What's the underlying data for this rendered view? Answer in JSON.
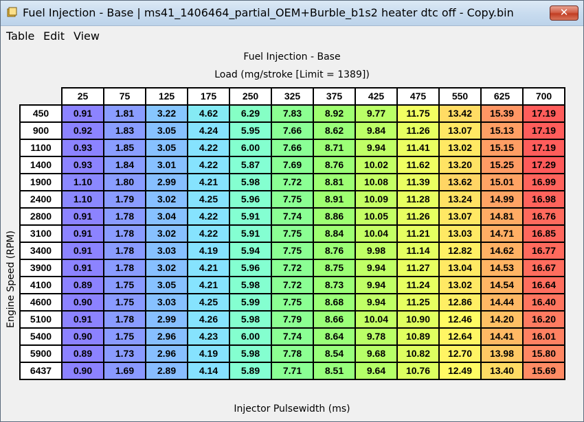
{
  "window": {
    "title": "Fuel Injection - Base | ms41_1406464_partial_OEM+Burble_b1s2 heater dtc off - Copy.bin",
    "close_label": "✕"
  },
  "menu": [
    "Table",
    "Edit",
    "View"
  ],
  "table": {
    "title": "Fuel Injection - Base",
    "x_axis_label": "Load (mg/stroke [Limit = 1389])",
    "y_axis_label": "Engine Speed (RPM)",
    "value_label": "Injector Pulsewidth (ms)",
    "columns": [
      "25",
      "75",
      "125",
      "175",
      "250",
      "325",
      "375",
      "425",
      "475",
      "550",
      "625",
      "700"
    ],
    "rows": [
      {
        "rpm": "450",
        "values": [
          "0.91",
          "1.81",
          "3.22",
          "4.62",
          "6.29",
          "7.83",
          "8.92",
          "9.77",
          "11.75",
          "13.42",
          "15.39",
          "17.19"
        ]
      },
      {
        "rpm": "900",
        "values": [
          "0.92",
          "1.83",
          "3.05",
          "4.24",
          "5.95",
          "7.66",
          "8.62",
          "9.84",
          "11.26",
          "13.07",
          "15.13",
          "17.19"
        ]
      },
      {
        "rpm": "1100",
        "values": [
          "0.93",
          "1.85",
          "3.05",
          "4.22",
          "6.00",
          "7.66",
          "8.71",
          "9.94",
          "11.41",
          "13.02",
          "15.15",
          "17.19"
        ]
      },
      {
        "rpm": "1400",
        "values": [
          "0.93",
          "1.84",
          "3.01",
          "4.22",
          "5.87",
          "7.69",
          "8.76",
          "10.02",
          "11.62",
          "13.20",
          "15.25",
          "17.29"
        ]
      },
      {
        "rpm": "1900",
        "values": [
          "1.10",
          "1.80",
          "2.99",
          "4.21",
          "5.98",
          "7.72",
          "8.81",
          "10.08",
          "11.39",
          "13.62",
          "15.01",
          "16.99"
        ]
      },
      {
        "rpm": "2400",
        "values": [
          "1.10",
          "1.79",
          "3.02",
          "4.25",
          "5.96",
          "7.75",
          "8.91",
          "10.09",
          "11.28",
          "13.24",
          "14.99",
          "16.98"
        ]
      },
      {
        "rpm": "2800",
        "values": [
          "0.91",
          "1.78",
          "3.04",
          "4.22",
          "5.91",
          "7.74",
          "8.86",
          "10.05",
          "11.26",
          "13.07",
          "14.81",
          "16.76"
        ]
      },
      {
        "rpm": "3100",
        "values": [
          "0.91",
          "1.78",
          "3.02",
          "4.22",
          "5.91",
          "7.75",
          "8.84",
          "10.04",
          "11.21",
          "13.03",
          "14.71",
          "16.85"
        ]
      },
      {
        "rpm": "3400",
        "values": [
          "0.91",
          "1.78",
          "3.03",
          "4.19",
          "5.94",
          "7.75",
          "8.76",
          "9.98",
          "11.14",
          "12.82",
          "14.62",
          "16.77"
        ]
      },
      {
        "rpm": "3900",
        "values": [
          "0.91",
          "1.78",
          "3.02",
          "4.21",
          "5.96",
          "7.72",
          "8.75",
          "9.94",
          "11.27",
          "13.04",
          "14.53",
          "16.67"
        ]
      },
      {
        "rpm": "4100",
        "values": [
          "0.89",
          "1.75",
          "3.05",
          "4.21",
          "5.98",
          "7.72",
          "8.73",
          "9.94",
          "11.24",
          "13.02",
          "14.54",
          "16.64"
        ]
      },
      {
        "rpm": "4600",
        "values": [
          "0.90",
          "1.75",
          "3.03",
          "4.25",
          "5.99",
          "7.75",
          "8.68",
          "9.94",
          "11.25",
          "12.86",
          "14.44",
          "16.40"
        ]
      },
      {
        "rpm": "5100",
        "values": [
          "0.91",
          "1.78",
          "2.99",
          "4.26",
          "5.98",
          "7.79",
          "8.66",
          "10.04",
          "10.90",
          "12.46",
          "14.20",
          "16.20"
        ]
      },
      {
        "rpm": "5400",
        "values": [
          "0.90",
          "1.75",
          "2.96",
          "4.23",
          "6.00",
          "7.74",
          "8.64",
          "9.78",
          "10.89",
          "12.64",
          "14.41",
          "16.01"
        ]
      },
      {
        "rpm": "5900",
        "values": [
          "0.89",
          "1.73",
          "2.96",
          "4.19",
          "5.98",
          "7.78",
          "8.54",
          "9.68",
          "10.82",
          "12.70",
          "13.98",
          "15.80"
        ]
      },
      {
        "rpm": "6437",
        "values": [
          "0.90",
          "1.69",
          "2.89",
          "4.14",
          "5.89",
          "7.71",
          "8.51",
          "9.64",
          "10.76",
          "12.49",
          "13.40",
          "15.69"
        ]
      }
    ]
  },
  "colors": {
    "scale": [
      "#8c82ff",
      "#88b2ff",
      "#86e2ff",
      "#84ffd6",
      "#86ff9c",
      "#a2ff6c",
      "#dcff60",
      "#ffff64",
      "#ffc864",
      "#ff8c64",
      "#ff5a5a"
    ],
    "close_button": "#c8442a"
  },
  "icons": {
    "app": "table-window-icon"
  }
}
